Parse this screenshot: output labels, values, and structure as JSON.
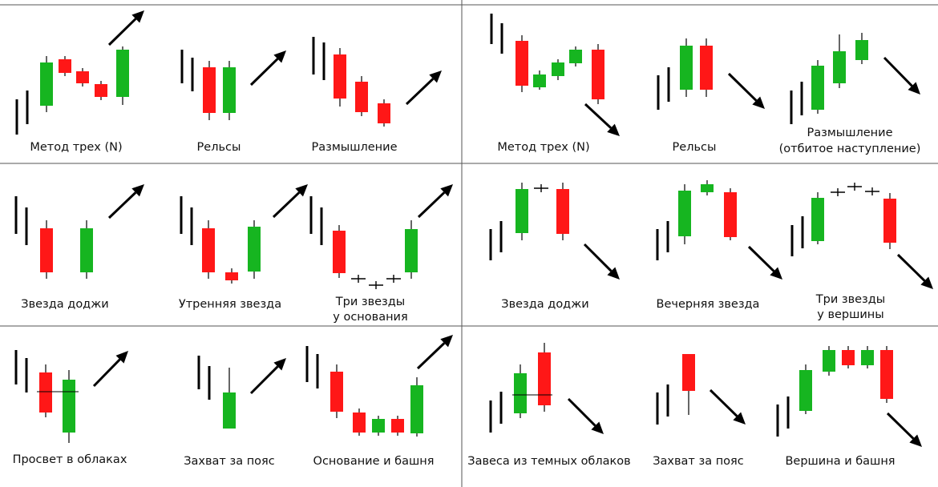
{
  "colors": {
    "bull": "#16b520",
    "bear": "#ff1717",
    "line": "#000000",
    "grid": "#555555"
  },
  "patterns": [
    {
      "id": "p1",
      "label": [
        "Метод трех (N)"
      ]
    },
    {
      "id": "p2",
      "label": [
        "Рельсы"
      ]
    },
    {
      "id": "p3",
      "label": [
        "Размышление"
      ]
    },
    {
      "id": "p4",
      "label": [
        "Метод трех (N)"
      ]
    },
    {
      "id": "p5",
      "label": [
        "Рельсы"
      ]
    },
    {
      "id": "p6",
      "label": [
        "Размышление",
        "(отбитое наступление)"
      ]
    },
    {
      "id": "p7",
      "label": [
        "Звезда доджи"
      ]
    },
    {
      "id": "p8",
      "label": [
        "Утренняя звезда"
      ]
    },
    {
      "id": "p9",
      "label": [
        "Три звезды",
        "у основания"
      ]
    },
    {
      "id": "p10",
      "label": [
        "Звезда доджи"
      ]
    },
    {
      "id": "p11",
      "label": [
        "Вечерняя звезда"
      ]
    },
    {
      "id": "p12",
      "label": [
        "Три звезды",
        "у вершины"
      ]
    },
    {
      "id": "p13",
      "label": [
        "Просвет в облаках"
      ]
    },
    {
      "id": "p14",
      "label": [
        "Захват за пояс"
      ]
    },
    {
      "id": "p15",
      "label": [
        "Основание и башня"
      ]
    },
    {
      "id": "p16",
      "label": [
        "Завеса из темных облаков"
      ]
    },
    {
      "id": "p17",
      "label": [
        "Захват за пояс"
      ]
    },
    {
      "id": "p18",
      "label": [
        "Вершина и башня"
      ]
    }
  ]
}
